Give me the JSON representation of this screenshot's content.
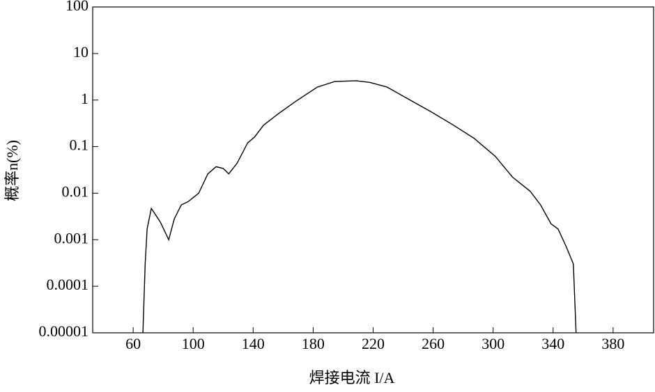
{
  "chart_data": {
    "type": "line",
    "xlabel": "焊接电流 I/A",
    "ylabel": "概率n(%)",
    "x": [
      66.5,
      68,
      69.3,
      72.1,
      78.1,
      83.7,
      87.4,
      92.1,
      96.7,
      103.7,
      109.8,
      115.3,
      120,
      123.7,
      129.3,
      136.3,
      140.9,
      147,
      157.2,
      168.8,
      182.8,
      194.4,
      208.4,
      217.7,
      229.3,
      245.6,
      259.5,
      273.5,
      287.4,
      301.4,
      313,
      324.7,
      331.6,
      338.6,
      343.3,
      348.8,
      353.5,
      355.3
    ],
    "values": [
      1e-05,
      0.0003,
      0.0017,
      0.0047,
      0.0024,
      0.001,
      0.0028,
      0.0056,
      0.0066,
      0.01,
      0.026,
      0.037,
      0.034,
      0.026,
      0.044,
      0.12,
      0.16,
      0.29,
      0.52,
      0.96,
      1.9,
      2.5,
      2.6,
      2.4,
      1.9,
      0.96,
      0.54,
      0.29,
      0.15,
      0.062,
      0.022,
      0.011,
      0.0056,
      0.0022,
      0.0017,
      0.0007,
      0.0003,
      1e-05
    ],
    "color": "#000000",
    "xlim": [
      33,
      407
    ],
    "xticks": [
      60,
      100,
      140,
      180,
      220,
      260,
      300,
      340,
      380
    ],
    "ylim": [
      1e-05,
      100
    ],
    "yticks": [
      1e-05,
      0.0001,
      0.001,
      0.01,
      0.1,
      1,
      10,
      100
    ],
    "ylog": true
  }
}
